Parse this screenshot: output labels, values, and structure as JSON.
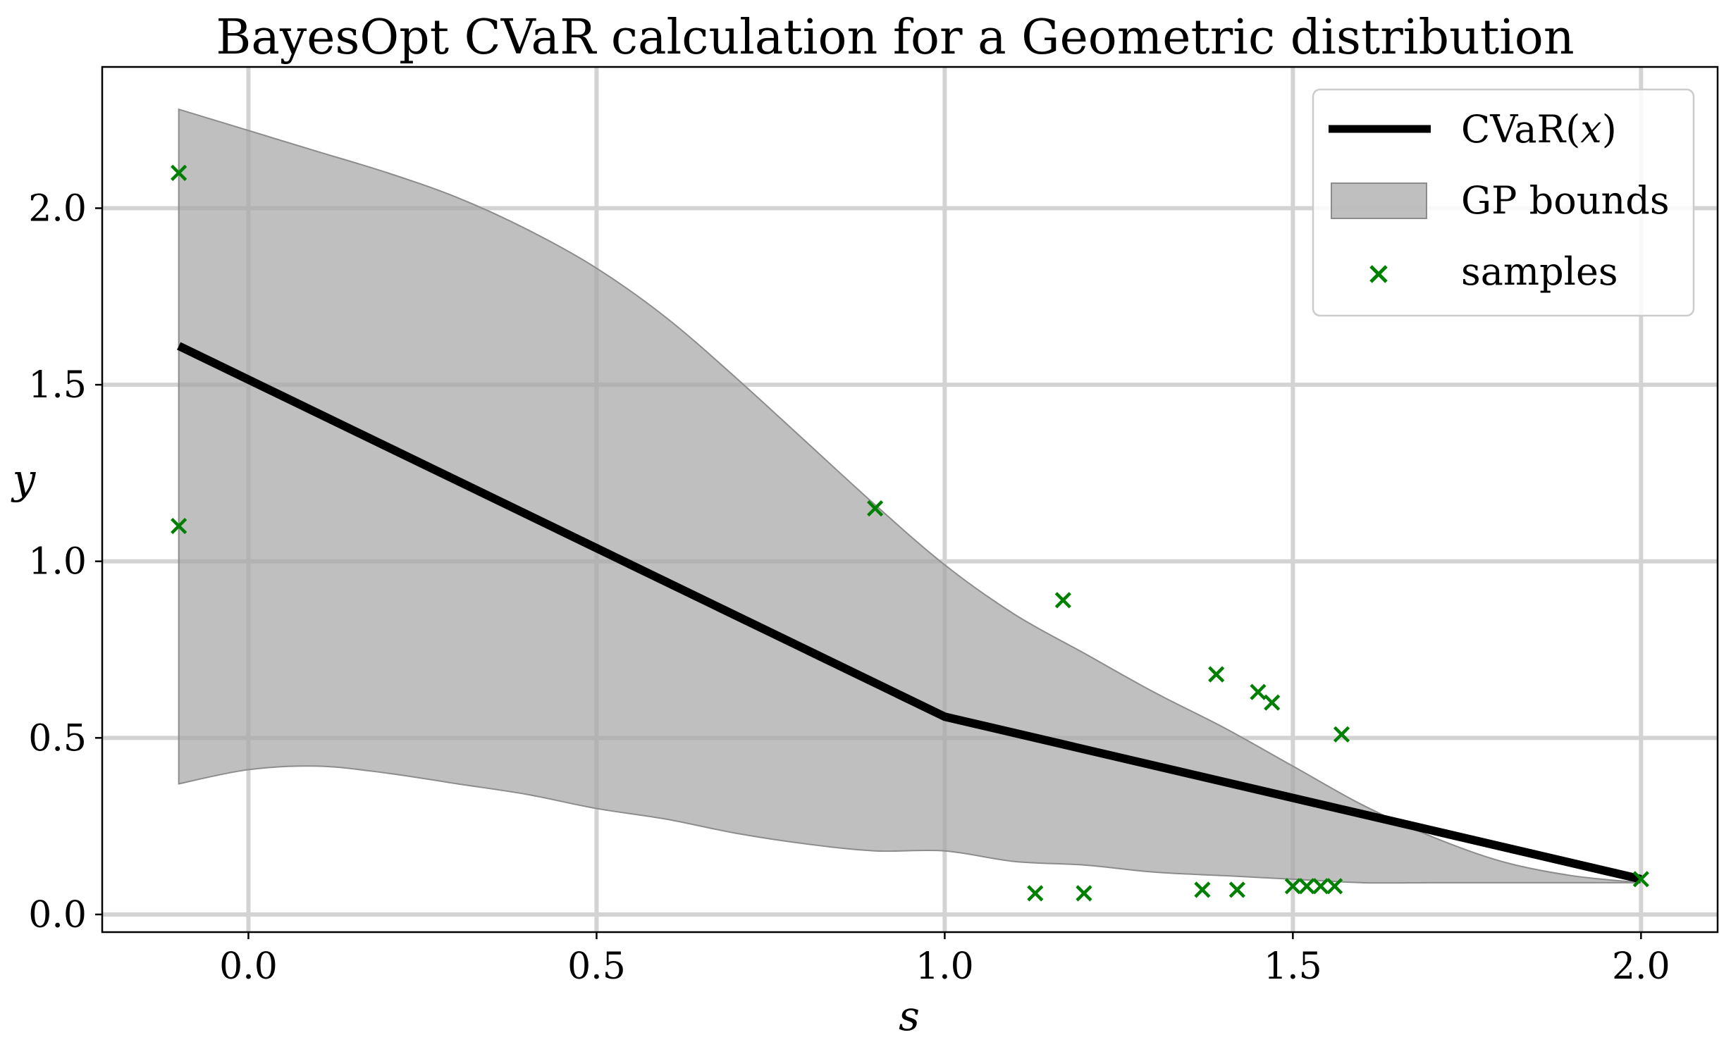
{
  "chart_data": {
    "type": "line",
    "title": "BayesOpt CVaR calculation for a Geometric distribution",
    "xlabel": "s",
    "ylabel": "y",
    "xlim": [
      -0.21,
      2.11
    ],
    "ylim": [
      -0.05,
      2.4
    ],
    "grid": true,
    "legend_position": "top-right",
    "x_ticks": [
      "0.0",
      "0.5",
      "1.0",
      "1.5",
      "2.0"
    ],
    "y_ticks": [
      "0.0",
      "0.5",
      "1.0",
      "1.5",
      "2.0"
    ],
    "colors": {
      "line": "#000000",
      "band": "#a6a6a6",
      "samples": "#008000",
      "grid": "#d3d3d3"
    },
    "series": [
      {
        "name": "CVaR(x)",
        "kind": "line",
        "x": [
          -0.1,
          1.0,
          2.0
        ],
        "y": [
          1.61,
          0.56,
          0.1
        ]
      },
      {
        "name": "GP bounds",
        "kind": "band",
        "x": [
          -0.1,
          0.0,
          0.1,
          0.2,
          0.3,
          0.4,
          0.5,
          0.6,
          0.7,
          0.8,
          0.9,
          1.0,
          1.1,
          1.2,
          1.3,
          1.4,
          1.5,
          1.6,
          1.7,
          1.8,
          1.9,
          2.0
        ],
        "upper": [
          2.28,
          2.22,
          2.16,
          2.1,
          2.03,
          1.94,
          1.83,
          1.69,
          1.52,
          1.34,
          1.16,
          0.99,
          0.85,
          0.74,
          0.63,
          0.53,
          0.42,
          0.31,
          0.22,
          0.15,
          0.11,
          0.09
        ],
        "lower": [
          0.37,
          0.41,
          0.42,
          0.4,
          0.37,
          0.34,
          0.3,
          0.27,
          0.23,
          0.2,
          0.18,
          0.18,
          0.15,
          0.14,
          0.12,
          0.11,
          0.1,
          0.09,
          0.09,
          0.09,
          0.09,
          0.09
        ]
      },
      {
        "name": "samples",
        "kind": "scatter",
        "x": [
          -0.1,
          -0.1,
          0.9,
          1.17,
          1.39,
          1.45,
          1.47,
          1.57,
          1.13,
          1.2,
          1.37,
          1.42,
          1.5,
          1.52,
          1.54,
          1.56,
          2.0
        ],
        "y": [
          2.1,
          1.1,
          1.15,
          0.89,
          0.68,
          0.63,
          0.6,
          0.51,
          0.06,
          0.06,
          0.07,
          0.07,
          0.08,
          0.08,
          0.08,
          0.08,
          0.1
        ]
      }
    ]
  },
  "legend": {
    "line_label": "CVaR(",
    "line_var": "x",
    "line_close": ")",
    "band_label": "GP bounds",
    "samples_label": "samples"
  }
}
